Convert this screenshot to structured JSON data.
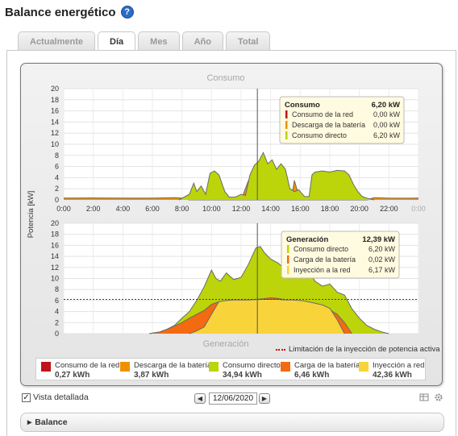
{
  "header": {
    "title": "Balance energético",
    "help_icon": "help-icon"
  },
  "tabs": [
    {
      "label": "Actualmente",
      "active": false
    },
    {
      "label": "Día",
      "active": true
    },
    {
      "label": "Mes",
      "active": false
    },
    {
      "label": "Año",
      "active": false
    },
    {
      "label": "Total",
      "active": false
    }
  ],
  "colors": {
    "red": "#c0141a",
    "orange_dark": "#f09000",
    "green": "#bcd40a",
    "orange": "#f46a10",
    "yellow": "#f8d33a",
    "line": "#666666",
    "limit": "#cc0000"
  },
  "chart_data": [
    {
      "type": "area",
      "title": "Consumo",
      "ylabel": "Potencia [kW]",
      "ylim": [
        0,
        20
      ],
      "yticks": [
        0,
        2,
        4,
        6,
        8,
        10,
        12,
        14,
        16,
        18,
        20
      ],
      "x_tick_labels": [
        "0:00",
        "2:00",
        "4:00",
        "6:00",
        "8:00",
        "10:00",
        "12:00",
        "14:00",
        "16:00",
        "18:00",
        "20:00",
        "22:00",
        "0:00"
      ],
      "cursor_time": 13.1,
      "series": [
        {
          "name": "Consumo de la red",
          "color": "#c0141a",
          "x": [
            0,
            8,
            8.5,
            10,
            12,
            13.5,
            15.5,
            16.5,
            20.5,
            21,
            24
          ],
          "y": [
            0.3,
            0.3,
            0.1,
            0,
            0,
            0,
            0,
            0,
            0,
            0.2,
            0.3
          ]
        },
        {
          "name": "Descarga de la batería",
          "color": "#f09000",
          "x": [
            0,
            2,
            4,
            6,
            7.5,
            8,
            8.5,
            12,
            12.5,
            13,
            13.3,
            15.4,
            15.6,
            16,
            20.5,
            21,
            22,
            24
          ],
          "y": [
            0.3,
            0.35,
            0.3,
            0.3,
            0.4,
            0.3,
            0,
            0,
            3.5,
            2,
            0,
            0,
            3.5,
            0,
            0,
            0.4,
            0.3,
            0.3
          ]
        },
        {
          "name": "Consumo directo",
          "color": "#bcd40a",
          "x": [
            7.8,
            8.5,
            8.8,
            9,
            9.3,
            9.6,
            9.9,
            10.2,
            10.5,
            10.9,
            11.2,
            11.6,
            12,
            12.3,
            12.6,
            12.9,
            13.2,
            13.5,
            13.8,
            14.1,
            14.4,
            14.7,
            15,
            15.3,
            15.6,
            15.9,
            16.3,
            16.6,
            16.8,
            17,
            17.5,
            18,
            18.5,
            19,
            19.3,
            19.6,
            19.9,
            20.2,
            20.5,
            21
          ],
          "y": [
            0,
            1,
            3,
            1.5,
            2.5,
            1,
            4.8,
            5.2,
            4.5,
            1.5,
            0.5,
            0.5,
            1,
            0.8,
            4.5,
            6.2,
            7,
            8.5,
            6.5,
            7.2,
            5.5,
            6.5,
            5.5,
            2,
            1.5,
            1.8,
            0.6,
            0.6,
            4.5,
            5,
            5.2,
            5,
            5.3,
            5.2,
            4.5,
            2.8,
            1.5,
            0.6,
            0.3,
            0
          ]
        }
      ]
    },
    {
      "type": "area",
      "title": "Generación",
      "ylabel": "Potencia [kW]",
      "ylim": [
        0,
        20
      ],
      "yticks": [
        0,
        2,
        4,
        6,
        8,
        10,
        12,
        14,
        16,
        18,
        20
      ],
      "cursor_time": 13.1,
      "limit_line": {
        "value": 6.2,
        "label": "Limitación de la inyección de potencia activa"
      },
      "series": [
        {
          "name": "Consumo directo",
          "color": "#bcd40a",
          "x": [
            5.8,
            6.5,
            7,
            7.5,
            8,
            8.5,
            9,
            9.5,
            10,
            10.3,
            10.6,
            11,
            11.5,
            12,
            12.5,
            13,
            13.3,
            13.6,
            14,
            14.5,
            15,
            15.5,
            16,
            16.5,
            17,
            17.5,
            18,
            18.5,
            19,
            19.5,
            20,
            20.5,
            21,
            21.5,
            22
          ],
          "y": [
            0,
            0.3,
            0.8,
            1.5,
            2.8,
            4,
            6,
            8.5,
            11.5,
            10,
            9.5,
            11,
            9.8,
            10.2,
            12.6,
            15.5,
            15.8,
            14.6,
            13.5,
            12.8,
            11.6,
            12.6,
            10.8,
            11.6,
            9.5,
            8.6,
            9,
            7.5,
            7,
            4.5,
            2.8,
            1.5,
            0.8,
            0.3,
            0
          ]
        },
        {
          "name": "Carga de la batería",
          "color": "#f46a10",
          "x": [
            5.8,
            6.5,
            7,
            7.5,
            8,
            8.5,
            9,
            9.5,
            10,
            10.5,
            11,
            11.5,
            12,
            12.5,
            13,
            13.5,
            14,
            14.5,
            15,
            15.5,
            16,
            16.5,
            17,
            17.5,
            18,
            18.5,
            19,
            19.5
          ],
          "y": [
            0,
            0.3,
            0.8,
            1.4,
            2.0,
            2.8,
            3.5,
            4.2,
            5.3,
            5.8,
            6.0,
            6.1,
            6.1,
            6.1,
            6.2,
            6.3,
            6.5,
            6.4,
            6.1,
            6.0,
            5.8,
            5.5,
            5.2,
            4.7,
            4.3,
            3.5,
            2.0,
            0
          ]
        },
        {
          "name": "Inyección a red",
          "color": "#f8d33a",
          "x": [
            8.5,
            9,
            9.5,
            10,
            10.5,
            11,
            11.5,
            12,
            12.5,
            13,
            13.5,
            14,
            14.5,
            15,
            15.5,
            16,
            16.5,
            17,
            17.5,
            18,
            18.5,
            19
          ],
          "y": [
            0,
            0.5,
            1.2,
            3.5,
            5.8,
            6.0,
            6.1,
            6.1,
            6.1,
            6.17,
            6.2,
            6.2,
            6.2,
            6.1,
            6.1,
            6.0,
            5.8,
            5.5,
            5.2,
            4.6,
            2.5,
            0
          ]
        }
      ]
    }
  ],
  "tooltip_consumo": {
    "title": "Consumo",
    "total": "6,20 kW",
    "rows": [
      {
        "label": "Consumo de la red",
        "value": "0,00 kW",
        "color": "#c0141a"
      },
      {
        "label": "Descarga de la batería",
        "value": "0,00 kW",
        "color": "#f09000"
      },
      {
        "label": "Consumo directo",
        "value": "6,20 kW",
        "color": "#bcd40a"
      }
    ]
  },
  "tooltip_generacion": {
    "title": "Generación",
    "total": "12,39 kW",
    "rows": [
      {
        "label": "Consumo directo",
        "value": "6,20 kW",
        "color": "#bcd40a"
      },
      {
        "label": "Carga de la batería",
        "value": "0,02 kW",
        "color": "#f46a10"
      },
      {
        "label": "Inyección a la red",
        "value": "6,17 kW",
        "color": "#f8d33a"
      }
    ]
  },
  "legend": [
    {
      "label": "Consumo de la red",
      "value": "0,27 kWh",
      "color": "#c0141a"
    },
    {
      "label": "Descarga de la batería",
      "value": "3,87 kWh",
      "color": "#f09000"
    },
    {
      "label": "Consumo directo",
      "value": "34,94 kWh",
      "color": "#bcd40a"
    },
    {
      "label": "Carga de la batería",
      "value": "6,46 kWh",
      "color": "#f46a10"
    },
    {
      "label": "Inyección a red",
      "value": "42,36 kWh",
      "color": "#f8d33a"
    }
  ],
  "limit_legend_label": "Limitación de la inyección de potencia activa",
  "controls": {
    "detailed_view_label": "Vista detallada",
    "detailed_view_checked": true,
    "check_mark": "✓",
    "prev_arrow": "◀",
    "next_arrow": "▶",
    "date_value": "12/06/2020",
    "export_icon": "table-export-icon",
    "settings_icon": "gear-icon"
  },
  "accordion": {
    "label": "Balance",
    "arrow": "▸"
  }
}
